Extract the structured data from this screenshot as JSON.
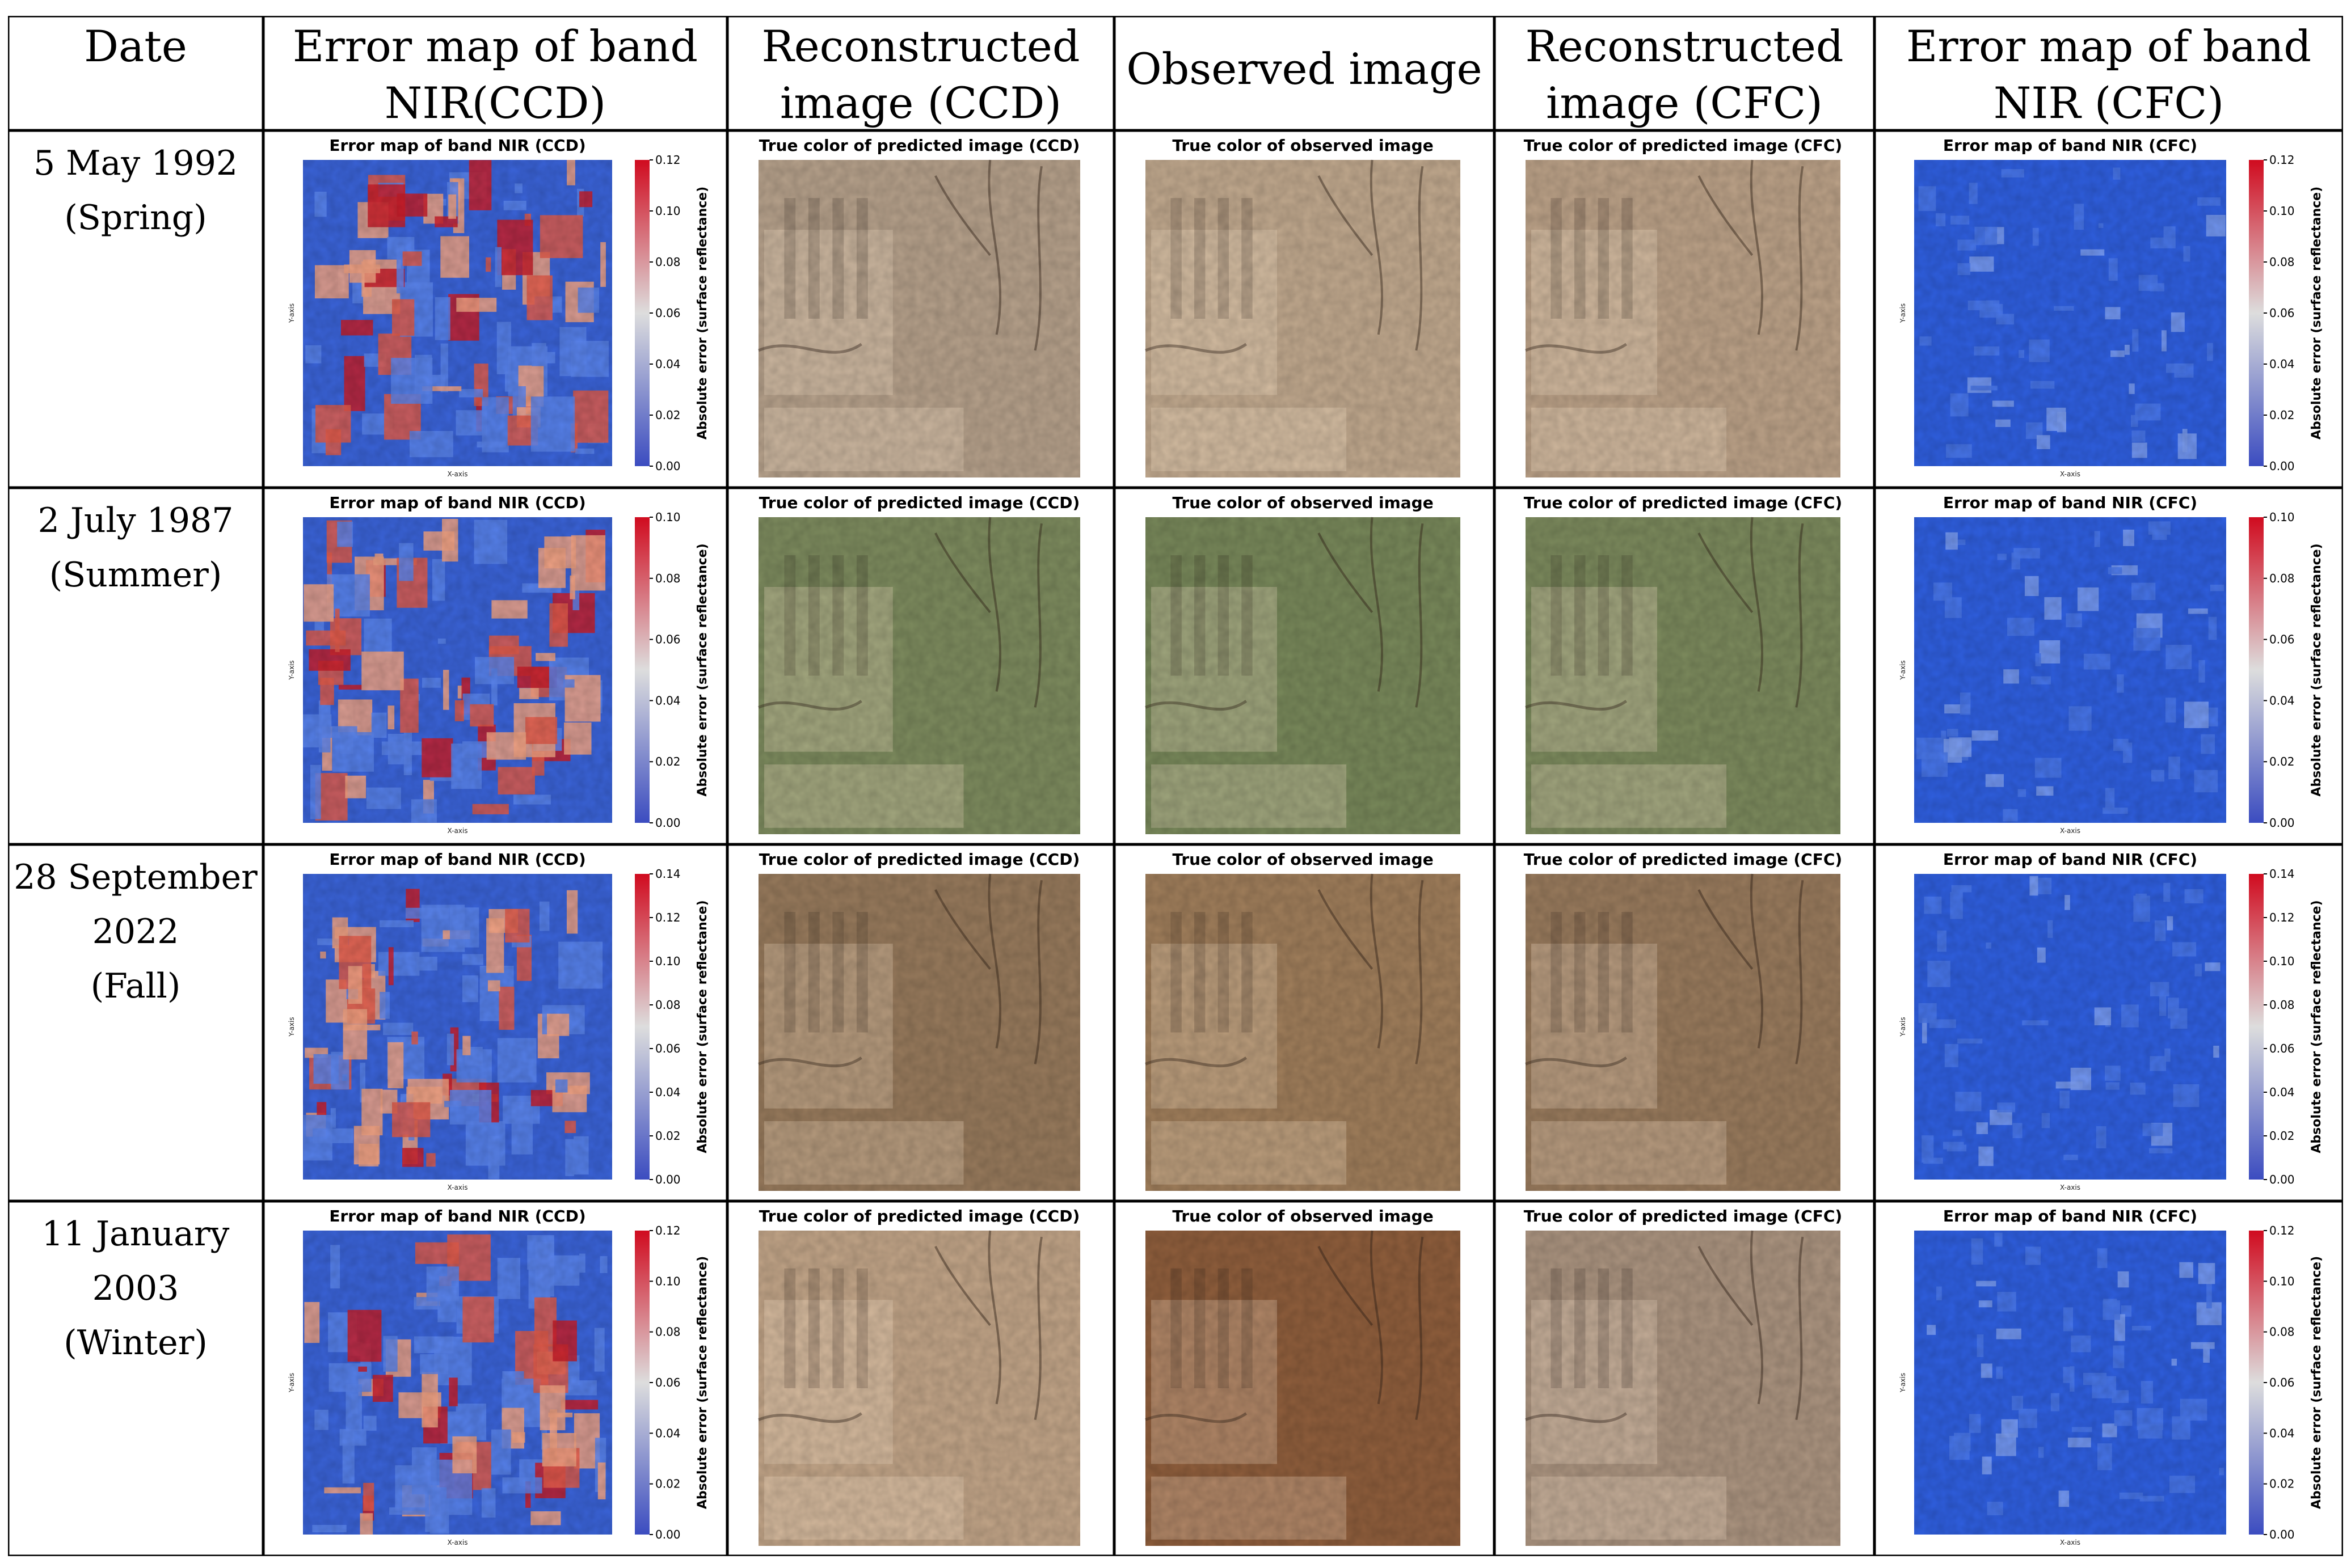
{
  "headers": [
    {
      "line1": "Date",
      "line2": ""
    },
    {
      "line1": "Error map of band",
      "line2": "NIR(CCD)"
    },
    {
      "line1": "Reconstructed",
      "line2": "image (CCD)"
    },
    {
      "line1": "Observed image",
      "line2": ""
    },
    {
      "line1": "Reconstructed",
      "line2": "image (CFC)"
    },
    {
      "line1": "Error map of band",
      "line2": "NIR (CFC)"
    }
  ],
  "panel_titles": {
    "err_ccd": "Error map of band NIR (CCD)",
    "pred_ccd": "True color of predicted image (CCD)",
    "obs": "True color of observed image",
    "pred_cfc": "True color of predicted image (CFC)",
    "err_cfc": "Error map of band NIR (CFC)"
  },
  "axis_labels": {
    "x": "X-axis",
    "y": "Y-axis"
  },
  "colorbar_label": "Absolute error (surface reflectance)",
  "colormap": {
    "low": "#3b4cc0",
    "mid": "#dddddd",
    "high": "#d00b1f"
  },
  "rows": [
    {
      "date_lines": [
        "5 May 1992",
        "(Spring)"
      ],
      "cbar_ticks": [
        "0.12",
        "0.10",
        "0.08",
        "0.06",
        "0.04",
        "0.02",
        "0.00"
      ],
      "cbar_max": 0.12,
      "colors": {
        "pred_ccd": "#b6a18b",
        "obs": "#c1a98e",
        "pred_cfc": "#bca288"
      }
    },
    {
      "date_lines": [
        "2 July 1987",
        "(Summer)"
      ],
      "cbar_ticks": [
        "0.10",
        "0.08",
        "0.06",
        "0.04",
        "0.02",
        "0.00"
      ],
      "cbar_max": 0.1,
      "colors": {
        "pred_ccd": "#7d8b5e",
        "obs": "#78885a",
        "pred_cfc": "#7c8a5d"
      }
    },
    {
      "date_lines": [
        "28 September",
        "2022",
        "(Fall)"
      ],
      "cbar_ticks": [
        "0.14",
        "0.12",
        "0.10",
        "0.08",
        "0.06",
        "0.04",
        "0.02",
        "0.00"
      ],
      "cbar_max": 0.14,
      "colors": {
        "pred_ccd": "#977a5c",
        "obs": "#a07e5b",
        "pred_cfc": "#997b5d"
      }
    },
    {
      "date_lines": [
        "11 January",
        "2003",
        "(Winter)"
      ],
      "cbar_ticks": [
        "0.12",
        "0.10",
        "0.08",
        "0.06",
        "0.04",
        "0.02",
        "0.00"
      ],
      "cbar_max": 0.12,
      "colors": {
        "pred_ccd": "#c2a588",
        "obs": "#8f5e3c",
        "pred_cfc": "#ab9480"
      }
    }
  ]
}
